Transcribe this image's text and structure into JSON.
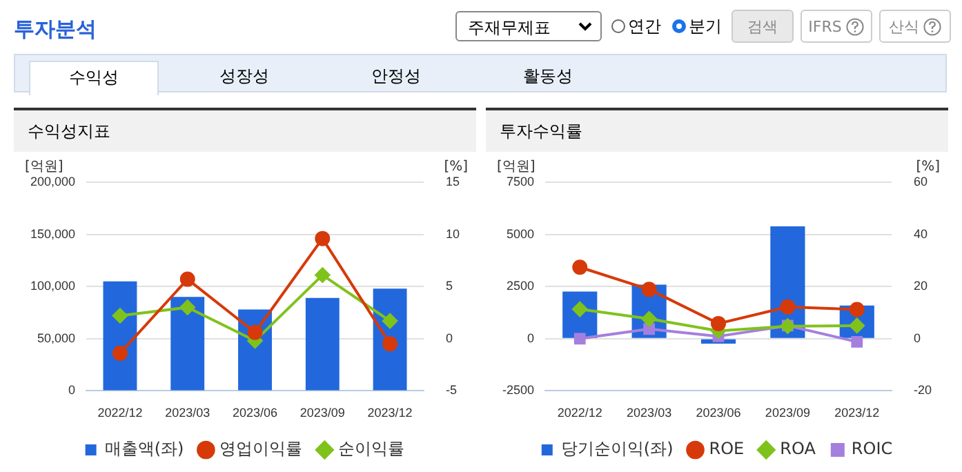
{
  "chart_data": [
    {
      "type": "bar",
      "title": "수익성지표",
      "ylabel": "[억원]",
      "y2label": "[%]",
      "annotations": [
        "투자분석",
        "주재무제표",
        "연간",
        "분기",
        "검색",
        "IFRS",
        "산식",
        "수익성",
        "성장성",
        "안정성",
        "활동성"
      ],
      "categories": [
        "2022/12",
        "2023/03",
        "2023/06",
        "2023/09",
        "2023/12"
      ],
      "series": [
        {
          "name": "매출액(좌)",
          "color": "#2268dc",
          "values": [
            105000,
            90000,
            78000,
            89000,
            98000
          ]
        },
        {
          "name": "영업이익률",
          "type": "line",
          "axis": "y2",
          "marker": "circle",
          "color": "#d63a0a",
          "values": [
            -1.4,
            5.7,
            0.6,
            9.6,
            -0.5
          ]
        },
        {
          "name": "순이익률",
          "type": "line",
          "axis": "y2",
          "marker": "diamond",
          "color": "#80c21c",
          "values": [
            2.2,
            3.0,
            -0.2,
            6.1,
            1.7
          ]
        }
      ],
      "ylim": [
        0,
        200000
      ],
      "yticks": [
        0,
        {
          "value": 50000,
          "label": "50,000"
        },
        {
          "value": 100000,
          "label": "100,000"
        },
        {
          "value": 150000,
          "label": "150,000"
        },
        {
          "value": 200000,
          "label": "200,000"
        }
      ],
      "y2lim": [
        -5,
        15
      ],
      "y2ticks": [
        -5,
        0,
        5,
        10,
        15
      ],
      "grid": "y",
      "legend": "bottom"
    },
    {
      "type": "bar",
      "title": "투자수익률",
      "ylabel": "[억원]",
      "y2label": "[%]",
      "categories": [
        "2022/12",
        "2023/03",
        "2023/06",
        "2023/09",
        "2023/12"
      ],
      "series": [
        {
          "name": "당기순이익(좌)",
          "color": "#2268dc",
          "values": [
            2260,
            2590,
            -240,
            5380,
            1590
          ]
        },
        {
          "name": "ROE",
          "type": "line",
          "axis": "y2",
          "marker": "circle",
          "color": "#d63a0a",
          "values": [
            27.4,
            18.9,
            5.8,
            12.2,
            11.2
          ]
        },
        {
          "name": "ROA",
          "type": "line",
          "axis": "y2",
          "marker": "diamond",
          "color": "#80c21c",
          "values": [
            11.3,
            7.6,
            3.0,
            4.8,
            5.0
          ]
        },
        {
          "name": "ROIC",
          "type": "line",
          "axis": "y2",
          "marker": "square",
          "color": "#a57fde",
          "values": [
            0,
            3.7,
            0.9,
            5.0,
            -1.2
          ]
        }
      ],
      "ylim": [
        -2500,
        7500
      ],
      "yticks": [
        -2500,
        0,
        2500,
        5000,
        7500
      ],
      "y2lim": [
        -20,
        60
      ],
      "y2ticks": [
        -20,
        0,
        20,
        40,
        60
      ],
      "grid": "y",
      "legend": "bottom"
    }
  ]
}
